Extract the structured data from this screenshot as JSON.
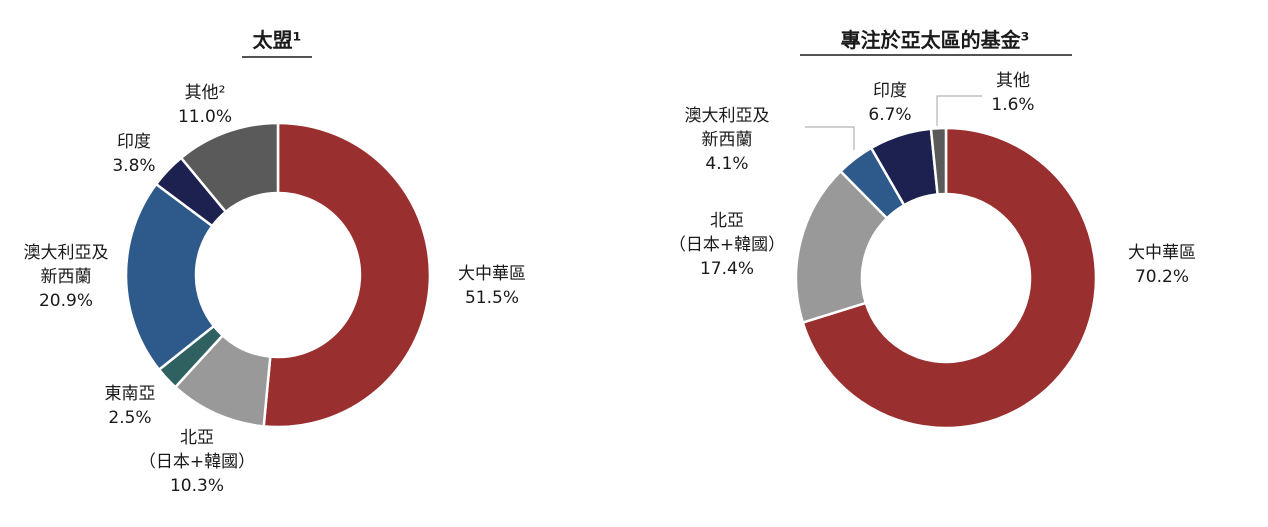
{
  "chart_data": [
    {
      "type": "pie",
      "title": "太盟¹",
      "slices": [
        {
          "label": [
            "大中華區"
          ],
          "value": 51.5,
          "value_text": "51.5%",
          "color": "#9a2f2f"
        },
        {
          "label": [
            "北亞",
            "（日本+韓國）"
          ],
          "value": 10.3,
          "value_text": "10.3%",
          "color": "#999999"
        },
        {
          "label": [
            "東南亞"
          ],
          "value": 2.5,
          "value_text": "2.5%",
          "color": "#2f6161"
        },
        {
          "label": [
            "澳大利亞及",
            "新西蘭"
          ],
          "value": 20.9,
          "value_text": "20.9%",
          "color": "#2d5a8a"
        },
        {
          "label": [
            "印度"
          ],
          "value": 3.8,
          "value_text": "3.8%",
          "color": "#1c2150"
        },
        {
          "label": [
            "其他²"
          ],
          "value": 11.0,
          "value_text": "11.0%",
          "color": "#5a5a5a"
        }
      ]
    },
    {
      "type": "pie",
      "title": "專注於亞太區的基金³",
      "slices": [
        {
          "label": [
            "大中華區"
          ],
          "value": 70.2,
          "value_text": "70.2%",
          "color": "#9a2f2f"
        },
        {
          "label": [
            "北亞",
            "（日本+韓國）"
          ],
          "value": 17.4,
          "value_text": "17.4%",
          "color": "#999999"
        },
        {
          "label": [
            "澳大利亞及",
            "新西蘭"
          ],
          "value": 4.1,
          "value_text": "4.1%",
          "color": "#2d5a8a"
        },
        {
          "label": [
            "印度"
          ],
          "value": 6.7,
          "value_text": "6.7%",
          "color": "#1c2150"
        },
        {
          "label": [
            "其他"
          ],
          "value": 1.6,
          "value_text": "1.6%",
          "color": "#5a5a5a"
        }
      ]
    }
  ]
}
